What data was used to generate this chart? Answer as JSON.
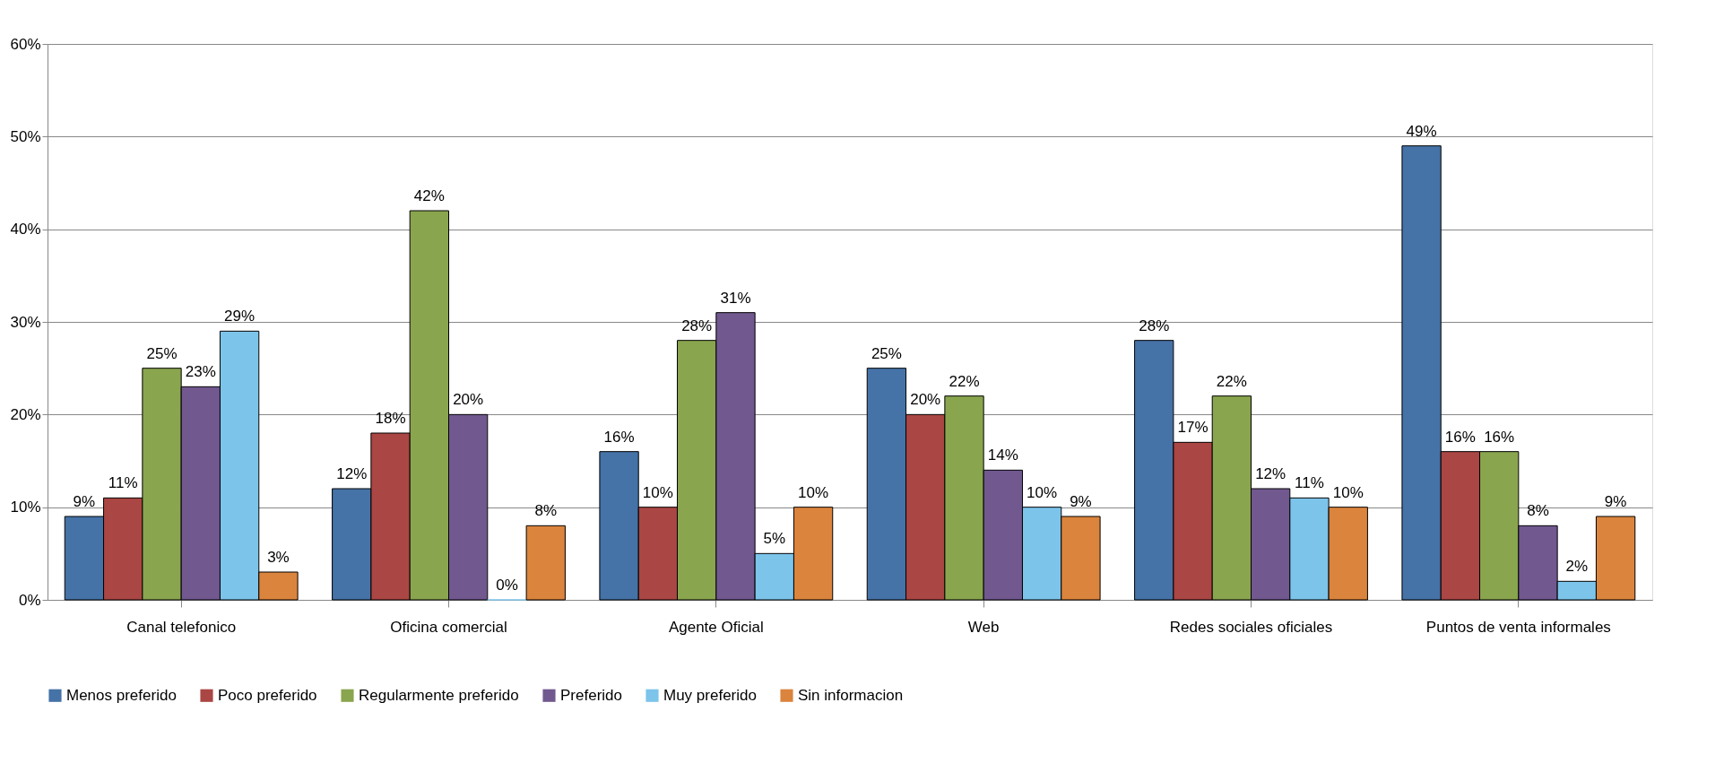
{
  "chart_data": {
    "type": "bar",
    "categories": [
      "Canal telefonico",
      "Oficina comercial",
      "Agente Oficial",
      "Web",
      "Redes sociales oficiales",
      "Puntos de venta informales"
    ],
    "ylim": [
      0,
      60
    ],
    "yticks": [
      {
        "value": 0,
        "label": "0%"
      },
      {
        "value": 10,
        "label": "10%"
      },
      {
        "value": 20,
        "label": "20%"
      },
      {
        "value": 30,
        "label": "30%"
      },
      {
        "value": 40,
        "label": "40%"
      },
      {
        "value": 50,
        "label": "50%"
      },
      {
        "value": 60,
        "label": "60%"
      }
    ],
    "grid": "y",
    "legend": "bottom",
    "series": [
      {
        "name": "Menos preferido",
        "color": "#4572a7",
        "values": [
          9,
          12,
          16,
          25,
          28,
          49
        ],
        "value_labels": [
          "9%",
          "12%",
          "16%",
          "25%",
          "28%",
          "49%"
        ]
      },
      {
        "name": "Poco preferido",
        "color": "#aa4643",
        "values": [
          11,
          18,
          10,
          20,
          17,
          16
        ],
        "value_labels": [
          "11%",
          "18%",
          "10%",
          "20%",
          "17%",
          "16%"
        ]
      },
      {
        "name": "Regularmente preferido",
        "color": "#89a54e",
        "values": [
          25,
          42,
          28,
          22,
          22,
          16
        ],
        "value_labels": [
          "25%",
          "42%",
          "28%",
          "22%",
          "22%",
          "16%"
        ]
      },
      {
        "name": "Preferido",
        "color": "#71588f",
        "values": [
          23,
          20,
          31,
          14,
          12,
          8
        ],
        "value_labels": [
          "23%",
          "20%",
          "31%",
          "14%",
          "12%",
          "8%"
        ]
      },
      {
        "name": "Muy preferido",
        "color": "#7cc4ea",
        "values": [
          29,
          0,
          5,
          10,
          11,
          2
        ],
        "value_labels": [
          "29%",
          "0%",
          "5%",
          "10%",
          "11%",
          "2%"
        ]
      },
      {
        "name": "Sin informacion",
        "color": "#db843d",
        "values": [
          3,
          8,
          10,
          9,
          10,
          9
        ],
        "value_labels": [
          "3%",
          "8%",
          "10%",
          "9%",
          "10%",
          "9%"
        ]
      }
    ]
  }
}
